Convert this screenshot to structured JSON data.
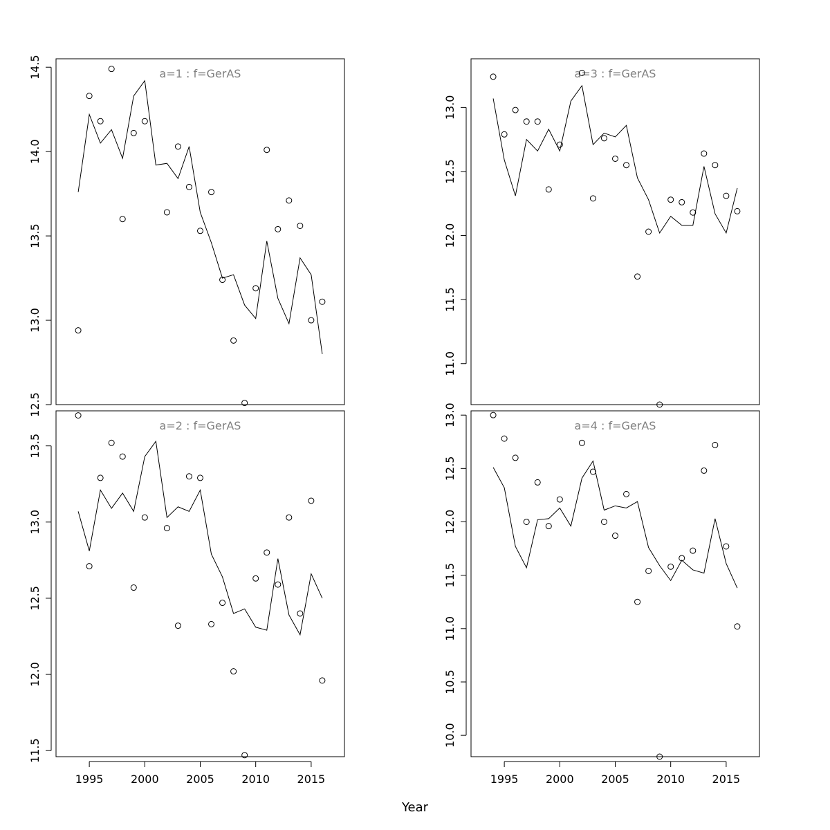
{
  "xlabel": "Year",
  "chart_data": [
    {
      "type": "scatter",
      "title": "a=1  :  f=GerAS",
      "xlim": [
        1992,
        2018
      ],
      "ylim": [
        12.5,
        14.55
      ],
      "yticks": [
        12.5,
        13.0,
        13.5,
        14.0,
        14.5
      ],
      "ytick_labels": [
        "12.5",
        "13.0",
        "13.5",
        "14.0",
        "14.5"
      ],
      "xticks": [],
      "xtick_labels": [],
      "x": [
        1994,
        1995,
        1996,
        1997,
        1998,
        1999,
        2000,
        2001,
        2002,
        2003,
        2004,
        2005,
        2006,
        2007,
        2008,
        2009,
        2010,
        2011,
        2012,
        2013,
        2014,
        2015,
        2016
      ],
      "observed": [
        12.94,
        14.33,
        14.18,
        14.49,
        13.6,
        14.11,
        14.18,
        null,
        13.64,
        14.03,
        13.79,
        13.53,
        13.76,
        13.24,
        12.88,
        12.51,
        13.19,
        14.01,
        13.54,
        13.71,
        13.56,
        13.0,
        13.11
      ],
      "fitted": [
        13.76,
        14.22,
        14.05,
        14.13,
        13.96,
        14.33,
        14.42,
        13.92,
        13.93,
        13.84,
        14.03,
        13.64,
        13.46,
        13.25,
        13.27,
        13.09,
        13.01,
        13.47,
        13.13,
        12.98,
        13.37,
        13.27,
        12.8
      ],
      "color": "#000000"
    },
    {
      "type": "scatter",
      "title": "a=3  :  f=GerAS",
      "xlim": [
        1992,
        2018
      ],
      "ylim": [
        10.68,
        13.38
      ],
      "yticks": [
        11.0,
        11.5,
        12.0,
        12.5,
        13.0
      ],
      "ytick_labels": [
        "11.0",
        "11.5",
        "12.0",
        "12.5",
        "13.0"
      ],
      "xticks": [],
      "xtick_labels": [],
      "x": [
        1994,
        1995,
        1996,
        1997,
        1998,
        1999,
        2000,
        2001,
        2002,
        2003,
        2004,
        2005,
        2006,
        2007,
        2008,
        2009,
        2010,
        2011,
        2012,
        2013,
        2014,
        2015,
        2016
      ],
      "observed": [
        13.24,
        12.79,
        12.98,
        12.89,
        12.89,
        12.36,
        12.71,
        null,
        13.27,
        12.29,
        12.76,
        12.6,
        12.55,
        11.68,
        12.03,
        10.68,
        12.28,
        12.26,
        12.18,
        12.64,
        12.55,
        12.31,
        12.19
      ],
      "fitted": [
        13.07,
        12.59,
        12.31,
        12.75,
        12.66,
        12.83,
        12.66,
        13.05,
        13.17,
        12.71,
        12.8,
        12.77,
        12.86,
        12.45,
        12.28,
        12.02,
        12.15,
        12.08,
        12.08,
        12.54,
        12.17,
        12.02,
        12.37
      ],
      "color": "#000000"
    },
    {
      "type": "scatter",
      "title": "a=2  :  f=GerAS",
      "xlim": [
        1992,
        2018
      ],
      "ylim": [
        11.46,
        13.73
      ],
      "yticks": [
        11.5,
        12.0,
        12.5,
        13.0,
        13.5
      ],
      "ytick_labels": [
        "11.5",
        "12.0",
        "12.5",
        "13.0",
        "13.5"
      ],
      "xticks": [
        1995,
        2000,
        2005,
        2010,
        2015
      ],
      "xtick_labels": [
        "1995",
        "2000",
        "2005",
        "2010",
        "2015"
      ],
      "x": [
        1994,
        1995,
        1996,
        1997,
        1998,
        1999,
        2000,
        2001,
        2002,
        2003,
        2004,
        2005,
        2006,
        2007,
        2008,
        2009,
        2010,
        2011,
        2012,
        2013,
        2014,
        2015,
        2016
      ],
      "observed": [
        13.7,
        12.71,
        13.29,
        13.52,
        13.43,
        12.57,
        13.03,
        null,
        12.96,
        12.32,
        13.3,
        13.29,
        12.33,
        12.47,
        12.02,
        11.47,
        12.63,
        12.8,
        12.59,
        13.03,
        12.4,
        13.14,
        11.96
      ],
      "fitted": [
        13.07,
        12.81,
        13.21,
        13.09,
        13.19,
        13.07,
        13.43,
        13.53,
        13.03,
        13.1,
        13.07,
        13.21,
        12.79,
        12.64,
        12.4,
        12.43,
        12.31,
        12.29,
        12.76,
        12.39,
        12.26,
        12.66,
        12.5
      ],
      "color": "#000000"
    },
    {
      "type": "scatter",
      "title": "a=4  :  f=GerAS",
      "xlim": [
        1992,
        2018
      ],
      "ylim": [
        9.8,
        13.04
      ],
      "yticks": [
        10.0,
        10.5,
        11.0,
        11.5,
        12.0,
        12.5,
        13.0
      ],
      "ytick_labels": [
        "10.0",
        "10.5",
        "11.0",
        "11.5",
        "12.0",
        "12.5",
        "13.0"
      ],
      "xticks": [
        1995,
        2000,
        2005,
        2010,
        2015
      ],
      "xtick_labels": [
        "1995",
        "2000",
        "2005",
        "2010",
        "2015"
      ],
      "x": [
        1994,
        1995,
        1996,
        1997,
        1998,
        1999,
        2000,
        2001,
        2002,
        2003,
        2004,
        2005,
        2006,
        2007,
        2008,
        2009,
        2010,
        2011,
        2012,
        2013,
        2014,
        2015,
        2016
      ],
      "observed": [
        13.0,
        12.78,
        12.6,
        12.0,
        12.37,
        11.96,
        12.21,
        null,
        12.74,
        12.47,
        12.0,
        11.87,
        12.26,
        11.25,
        11.54,
        9.8,
        11.58,
        11.66,
        11.73,
        12.48,
        12.72,
        11.77,
        11.02
      ],
      "fitted": [
        12.51,
        12.32,
        11.77,
        11.57,
        12.02,
        12.03,
        12.13,
        11.96,
        12.41,
        12.57,
        12.11,
        12.15,
        12.13,
        12.19,
        11.76,
        11.59,
        11.45,
        11.64,
        11.55,
        11.52,
        12.03,
        11.61,
        11.38
      ],
      "color": "#000000"
    }
  ]
}
